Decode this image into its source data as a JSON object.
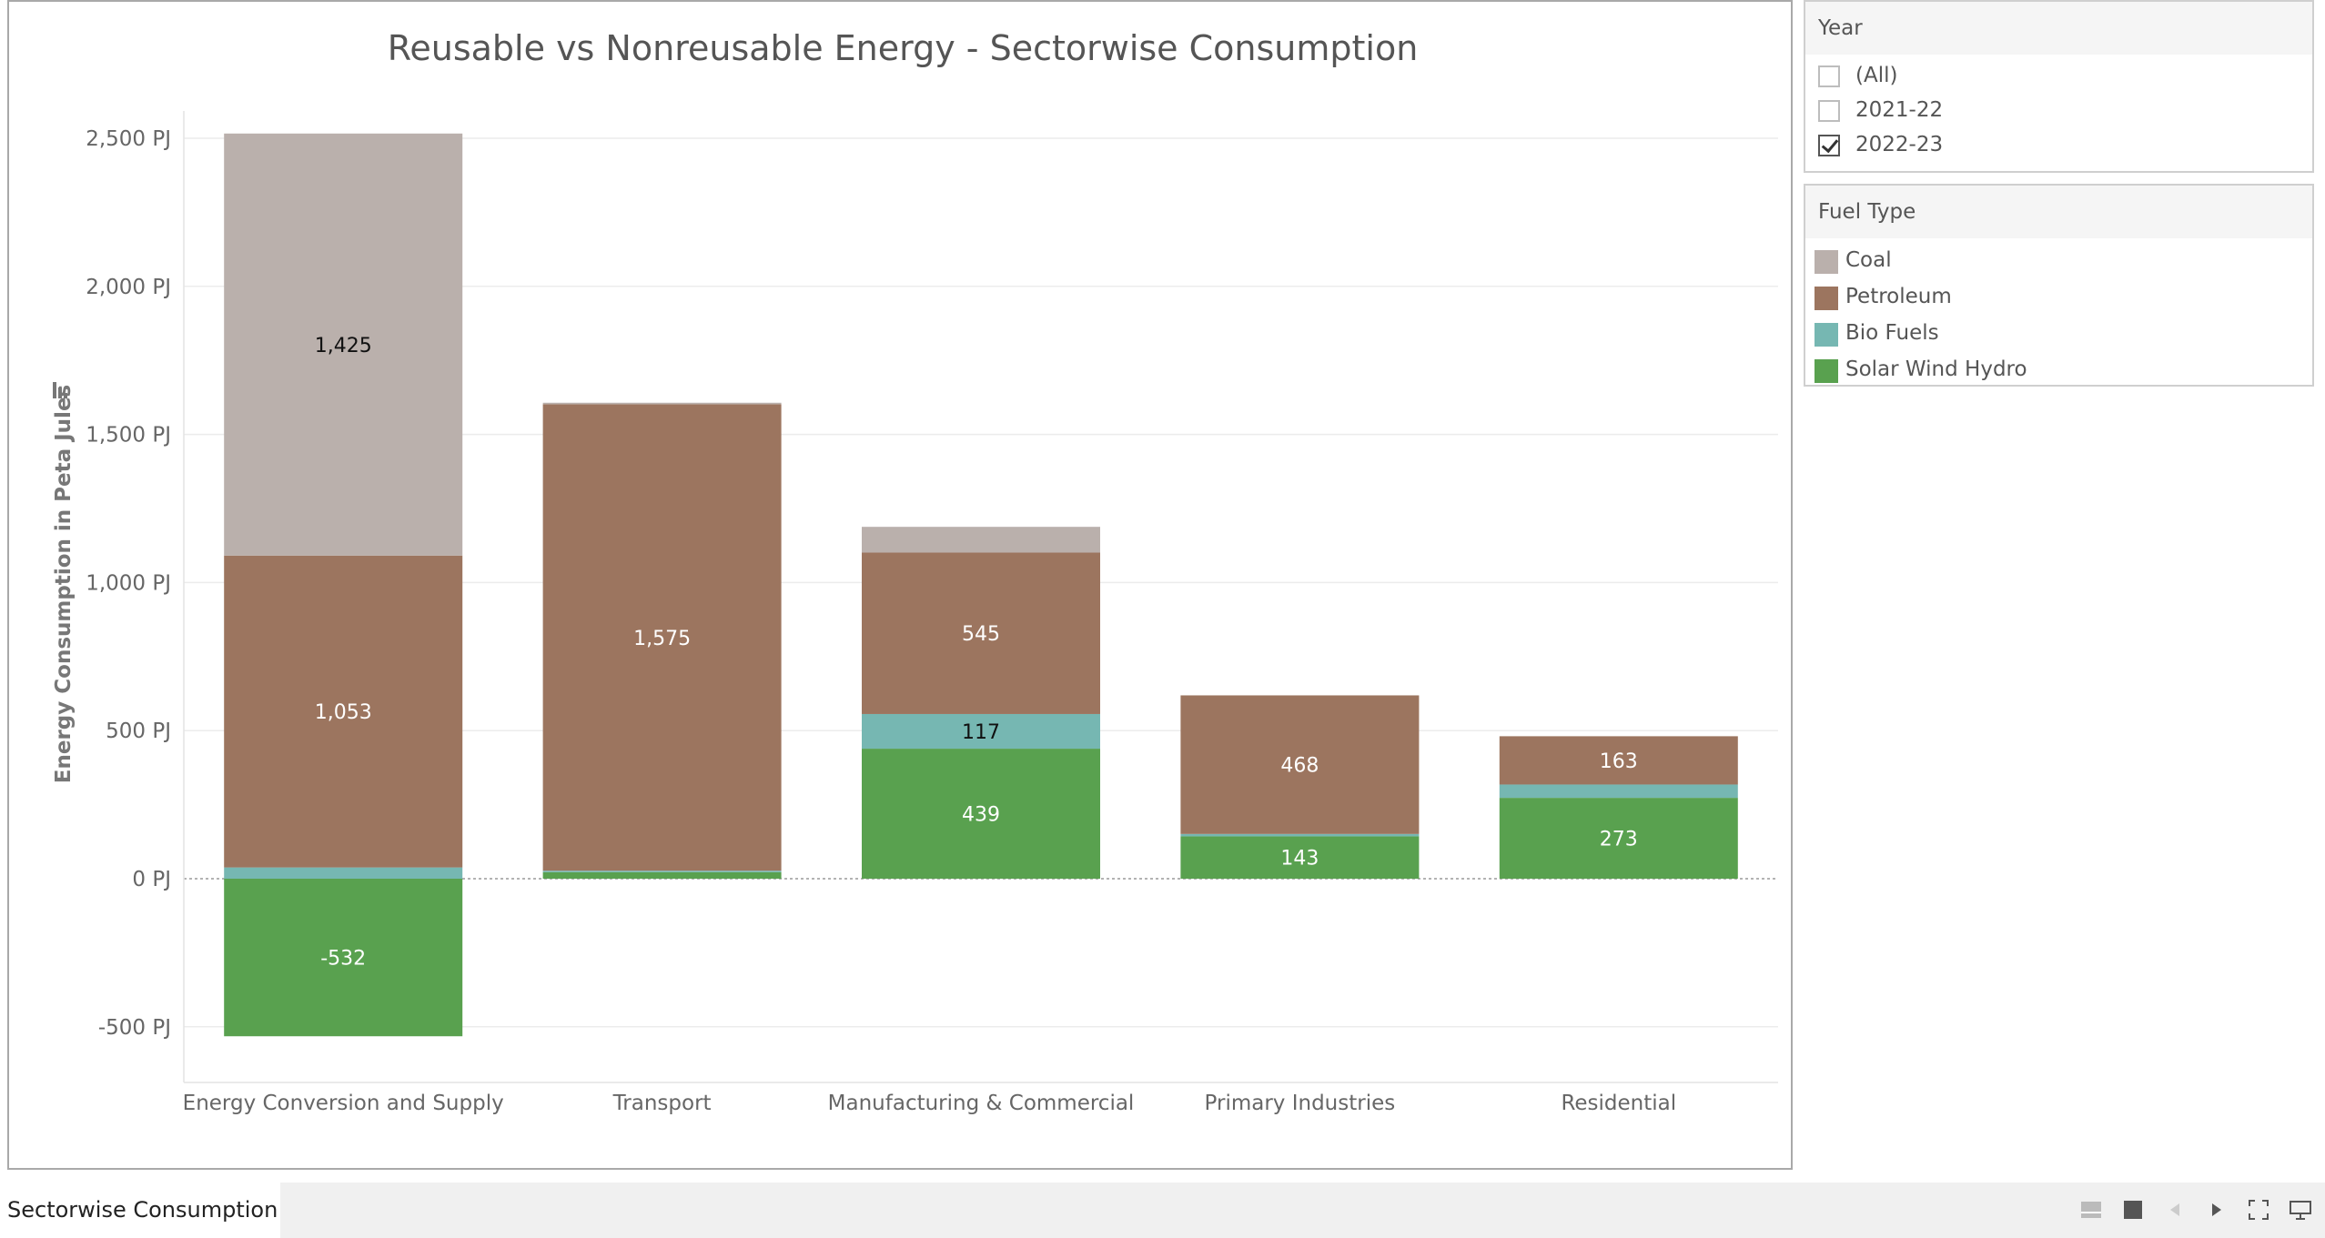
{
  "chart_data": {
    "type": "bar",
    "stacked": true,
    "title": "Reusable vs Nonreusable Energy - Sectorwise Consumption",
    "xlabel": "",
    "ylabel": "Energy Consumption in Peta Jules",
    "ylim": [
      -620,
      2620
    ],
    "yticks": [
      -500,
      0,
      500,
      1000,
      1500,
      2000,
      2500
    ],
    "ytick_labels": [
      "-500 PJ",
      "0 PJ",
      "500 PJ",
      "1,000 PJ",
      "1,500 PJ",
      "2,000 PJ",
      "2,500 PJ"
    ],
    "grid": true,
    "legend": "right",
    "categories": [
      "Energy Conversion and Supply",
      "Transport",
      "Manufacturing & Commercial",
      "Primary Industries",
      "Residential"
    ],
    "series": [
      {
        "name": "Solar Wind Hydro",
        "color": "#59a14f",
        "values": [
          -532,
          22,
          439,
          143,
          273
        ],
        "labels": [
          "-532",
          "",
          "439",
          "143",
          "273"
        ]
      },
      {
        "name": "Bio Fuels",
        "color": "#76b7b2",
        "values": [
          38,
          5,
          117,
          8,
          45
        ],
        "labels": [
          "",
          "",
          "117",
          "",
          ""
        ]
      },
      {
        "name": "Petroleum",
        "color": "#9c755f",
        "values": [
          1053,
          1575,
          545,
          468,
          163
        ],
        "labels": [
          "1,053",
          "1,575",
          "545",
          "468",
          "163"
        ]
      },
      {
        "name": "Coal",
        "color": "#bab0ac",
        "values": [
          1425,
          5,
          87,
          0,
          0
        ],
        "labels": [
          "1,425",
          "",
          "",
          "",
          ""
        ]
      }
    ]
  },
  "filters": {
    "year": {
      "title": "Year",
      "options": [
        {
          "label": "(All)",
          "checked": false
        },
        {
          "label": "2021-22",
          "checked": false
        },
        {
          "label": "2022-23",
          "checked": true
        }
      ]
    },
    "fuel_type": {
      "title": "Fuel Type",
      "items": [
        {
          "label": "Coal",
          "color": "#bab0ac"
        },
        {
          "label": "Petroleum",
          "color": "#9c755f"
        },
        {
          "label": "Bio Fuels",
          "color": "#76b7b2"
        },
        {
          "label": "Solar Wind Hydro",
          "color": "#59a14f"
        }
      ]
    }
  },
  "sheet_tab": "Sectorwise Consumption",
  "nav_icons": [
    "grid-view-icon",
    "single-view-icon",
    "previous-icon",
    "next-icon",
    "fullscreen-icon",
    "present-icon"
  ]
}
